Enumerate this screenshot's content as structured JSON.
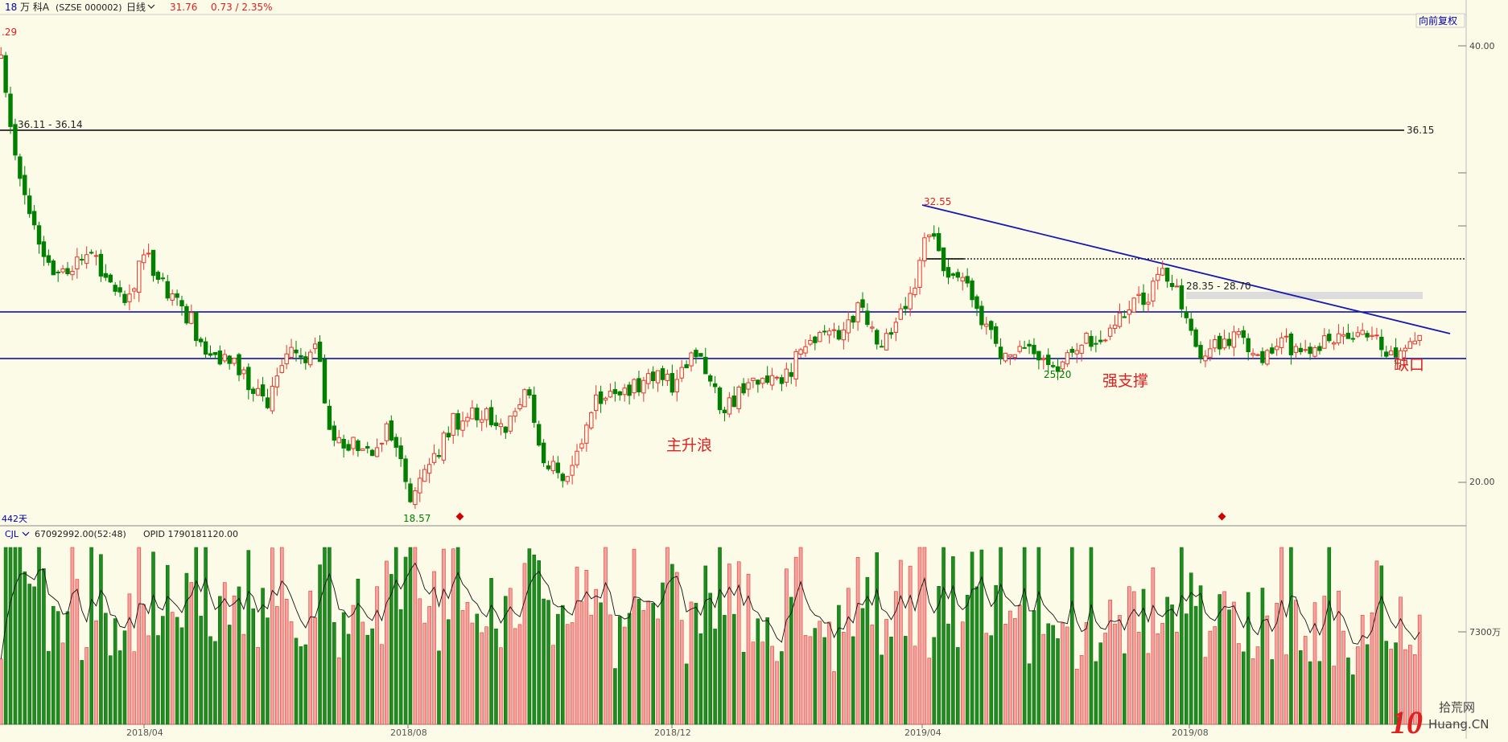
{
  "header": {
    "period_code": "18",
    "name": "万 科A",
    "code": "(SZSE 000002)",
    "period_label": "日线",
    "price": "31.76",
    "change": "0.73 / 2.35%",
    "adjust_button": "向前复权"
  },
  "chart_data": {
    "type": "candlestick",
    "title": "",
    "price_axis": {
      "min": 17.5,
      "max": 41.5,
      "labels": [
        "40.00",
        "20.00"
      ]
    },
    "x_labels": [
      "2018/04",
      "2018/08",
      "2018/12",
      "2019/04",
      "2019/08"
    ],
    "annotations": {
      "high_left": ".29",
      "hline_left_label": "36.11 - 36.14",
      "hline_right_label": "36.15",
      "peak_label": "32.55",
      "zone_label": "28.35 - 28.70",
      "low1_label": "18.57",
      "low2_label": "25.20",
      "text_main_wave": "主升浪",
      "text_strong_support": "强支撑",
      "text_gap": "缺口",
      "days_label": "442天"
    },
    "levels": {
      "top_line": 36.15,
      "resistance": 27.4,
      "support": 25.7,
      "dotted": 29.8,
      "zone": [
        28.35,
        28.7
      ]
    },
    "trendline": {
      "from": [
        959,
        32.55
      ],
      "to": [
        1505,
        26.4
      ]
    },
    "markers": [
      478,
      1270
    ],
    "price_path": [
      [
        0,
        39.5
      ],
      [
        18,
        34
      ],
      [
        38,
        31
      ],
      [
        60,
        29.5
      ],
      [
        90,
        30.5
      ],
      [
        115,
        29.2
      ],
      [
        130,
        27.8
      ],
      [
        150,
        30.5
      ],
      [
        175,
        28.5
      ],
      [
        200,
        27.3
      ],
      [
        215,
        25.4
      ],
      [
        240,
        25.6
      ],
      [
        275,
        23.5
      ],
      [
        300,
        25.8
      ],
      [
        330,
        25.9
      ],
      [
        345,
        22
      ],
      [
        360,
        21.8
      ],
      [
        385,
        21.5
      ],
      [
        405,
        22.5
      ],
      [
        430,
        19.1
      ],
      [
        445,
        20.7
      ],
      [
        470,
        22.7
      ],
      [
        500,
        23.2
      ],
      [
        525,
        22.5
      ],
      [
        548,
        24.7
      ],
      [
        565,
        21
      ],
      [
        590,
        20
      ],
      [
        615,
        23.5
      ],
      [
        650,
        24.2
      ],
      [
        680,
        25
      ],
      [
        700,
        24.5
      ],
      [
        725,
        26
      ],
      [
        750,
        23.5
      ],
      [
        780,
        24.4
      ],
      [
        820,
        25
      ],
      [
        840,
        26.8
      ],
      [
        870,
        26.8
      ],
      [
        895,
        28.2
      ],
      [
        910,
        26.3
      ],
      [
        935,
        27.6
      ],
      [
        955,
        29.4
      ],
      [
        965,
        31.8
      ],
      [
        982,
        29.9
      ],
      [
        1000,
        29.3
      ],
      [
        1015,
        28.2
      ],
      [
        1025,
        27
      ],
      [
        1040,
        26.1
      ],
      [
        1070,
        25.8
      ],
      [
        1098,
        25.4
      ],
      [
        1120,
        26.4
      ],
      [
        1150,
        26.6
      ],
      [
        1170,
        28
      ],
      [
        1190,
        28.4
      ],
      [
        1210,
        29.5
      ],
      [
        1230,
        28.2
      ],
      [
        1245,
        25.8
      ],
      [
        1260,
        26.5
      ],
      [
        1285,
        26.6
      ],
      [
        1310,
        25.6
      ],
      [
        1330,
        26.6
      ],
      [
        1355,
        25.9
      ],
      [
        1385,
        26.5
      ],
      [
        1410,
        27.1
      ],
      [
        1435,
        26.2
      ],
      [
        1460,
        26
      ],
      [
        1478,
        26.5
      ]
    ],
    "volume_axis": {
      "label": "7300万",
      "label_value": 7300
    },
    "volume_header": {
      "title": "CJL",
      "value": "67092992.00(52:48)",
      "opid": "OPID 1790181120.00"
    },
    "colors": {
      "up": "#e6362d",
      "down": "#007f00",
      "blue_line": "#0000aa",
      "trend_line": "#1818b0",
      "annotation_red": "#e02020",
      "annotation_green": "#007f00"
    }
  },
  "logo": {
    "digit": "10",
    "text1": "拾荒网",
    "text2": "Huang.CN"
  }
}
